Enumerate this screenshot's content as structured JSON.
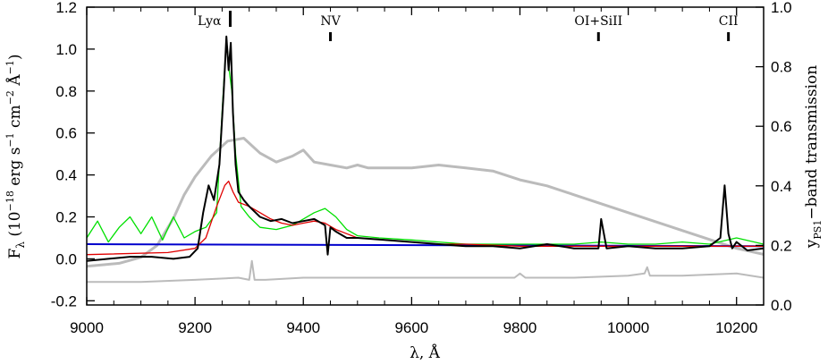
{
  "chart_data": {
    "type": "line",
    "title": "",
    "xlabel": "λ, Å",
    "ylabel_left": "F_λ (10^-18 erg s^-1 cm^-2 Å^-1)",
    "ylabel_right": "y_PS1-band transmission",
    "xlim": [
      9000,
      10250
    ],
    "ylim_left": [
      -0.22,
      1.2
    ],
    "ylim_right": [
      0.0,
      1.0
    ],
    "x_ticks": [
      9000,
      9200,
      9400,
      9600,
      9800,
      10000,
      10200
    ],
    "y_ticks_left": [
      -0.2,
      0.0,
      0.2,
      0.4,
      0.6,
      0.8,
      1.0,
      1.2
    ],
    "y_ticks_right": [
      0.0,
      0.2,
      0.4,
      0.6,
      0.8,
      1.0
    ],
    "line_markers": [
      {
        "label": "Lyα",
        "x": 9265,
        "tall": true
      },
      {
        "label": "NV",
        "x": 9450,
        "tall": false
      },
      {
        "label": "OI+SiII",
        "x": 9945,
        "tall": false
      },
      {
        "label": "CII",
        "x": 10185,
        "tall": false
      }
    ],
    "colors": {
      "observed": "#000000",
      "model_red": "#e00000",
      "template_green": "#00e000",
      "continuum_blue": "#0000cc",
      "filter_gray": "#bbbbbb",
      "noise_gray": "#bbbbbb"
    },
    "series": [
      {
        "key": "filter",
        "axis": "right",
        "x": [
          9000,
          9060,
          9100,
          9130,
          9160,
          9180,
          9200,
          9230,
          9260,
          9290,
          9320,
          9350,
          9380,
          9400,
          9420,
          9450,
          9480,
          9500,
          9520,
          9560,
          9600,
          9650,
          9700,
          9750,
          9800,
          9850,
          9900,
          10000,
          10100,
          10200,
          10250
        ],
        "y": [
          0.13,
          0.14,
          0.16,
          0.2,
          0.29,
          0.37,
          0.43,
          0.5,
          0.55,
          0.56,
          0.51,
          0.48,
          0.5,
          0.52,
          0.48,
          0.47,
          0.46,
          0.47,
          0.46,
          0.46,
          0.46,
          0.47,
          0.46,
          0.45,
          0.42,
          0.4,
          0.37,
          0.31,
          0.25,
          0.19,
          0.17
        ]
      },
      {
        "key": "noise",
        "axis": "left",
        "x": [
          9000,
          9100,
          9200,
          9280,
          9300,
          9305,
          9310,
          9330,
          9400,
          9500,
          9600,
          9700,
          9790,
          9800,
          9810,
          9900,
          10000,
          10030,
          10035,
          10040,
          10100,
          10200,
          10250
        ],
        "y": [
          -0.11,
          -0.11,
          -0.1,
          -0.09,
          -0.1,
          -0.01,
          -0.1,
          -0.1,
          -0.09,
          -0.09,
          -0.09,
          -0.09,
          -0.09,
          -0.07,
          -0.09,
          -0.09,
          -0.08,
          -0.07,
          -0.04,
          -0.08,
          -0.08,
          -0.07,
          -0.09
        ]
      },
      {
        "key": "continuum",
        "axis": "left",
        "x": [
          9000,
          10250
        ],
        "y": [
          0.07,
          0.06
        ]
      },
      {
        "key": "template",
        "axis": "left",
        "x": [
          9000,
          9020,
          9040,
          9060,
          9080,
          9100,
          9120,
          9140,
          9160,
          9180,
          9200,
          9220,
          9240,
          9250,
          9258,
          9263,
          9268,
          9275,
          9285,
          9300,
          9320,
          9350,
          9380,
          9400,
          9420,
          9440,
          9460,
          9480,
          9500,
          9540,
          9600,
          9650,
          9700,
          9750,
          9800,
          9850,
          9900,
          9950,
          10000,
          10050,
          10100,
          10150,
          10200,
          10250
        ],
        "y": [
          0.1,
          0.18,
          0.08,
          0.15,
          0.2,
          0.12,
          0.2,
          0.09,
          0.2,
          0.1,
          0.13,
          0.15,
          0.22,
          0.7,
          1.05,
          0.9,
          0.8,
          0.5,
          0.25,
          0.2,
          0.15,
          0.14,
          0.16,
          0.19,
          0.22,
          0.24,
          0.2,
          0.14,
          0.11,
          0.1,
          0.09,
          0.08,
          0.07,
          0.07,
          0.07,
          0.07,
          0.07,
          0.08,
          0.07,
          0.07,
          0.08,
          0.07,
          0.1,
          0.07
        ]
      },
      {
        "key": "model",
        "axis": "left",
        "x": [
          9000,
          9150,
          9200,
          9220,
          9240,
          9255,
          9262,
          9270,
          9280,
          9300,
          9320,
          9340,
          9360,
          9380,
          9400,
          9420,
          9440,
          9460,
          9480,
          9500,
          9550,
          9600,
          9650,
          9700,
          9800,
          9900,
          10000,
          10100,
          10200,
          10250
        ],
        "y": [
          0.02,
          0.03,
          0.05,
          0.1,
          0.25,
          0.35,
          0.37,
          0.32,
          0.27,
          0.25,
          0.22,
          0.19,
          0.17,
          0.16,
          0.17,
          0.18,
          0.17,
          0.14,
          0.12,
          0.1,
          0.09,
          0.08,
          0.07,
          0.07,
          0.06,
          0.06,
          0.06,
          0.06,
          0.06,
          0.06
        ]
      },
      {
        "key": "observed",
        "axis": "left",
        "x": [
          9000,
          9040,
          9080,
          9120,
          9160,
          9190,
          9205,
          9215,
          9225,
          9235,
          9245,
          9253,
          9258,
          9262,
          9266,
          9270,
          9275,
          9280,
          9290,
          9300,
          9320,
          9340,
          9360,
          9380,
          9400,
          9420,
          9440,
          9445,
          9450,
          9460,
          9480,
          9500,
          9550,
          9600,
          9650,
          9700,
          9750,
          9800,
          9850,
          9900,
          9945,
          9950,
          9960,
          10000,
          10050,
          10100,
          10150,
          10170,
          10178,
          10185,
          10192,
          10200,
          10220,
          10250
        ],
        "y": [
          -0.01,
          0.0,
          0.01,
          0.01,
          0.0,
          0.01,
          0.05,
          0.22,
          0.35,
          0.28,
          0.45,
          0.8,
          1.06,
          0.9,
          1.03,
          0.7,
          0.45,
          0.32,
          0.28,
          0.25,
          0.2,
          0.18,
          0.19,
          0.17,
          0.18,
          0.19,
          0.16,
          0.02,
          0.15,
          0.13,
          0.1,
          0.1,
          0.09,
          0.08,
          0.07,
          0.06,
          0.06,
          0.05,
          0.07,
          0.05,
          0.05,
          0.19,
          0.05,
          0.06,
          0.05,
          0.05,
          0.06,
          0.1,
          0.35,
          0.12,
          0.05,
          0.08,
          0.04,
          0.05
        ]
      }
    ]
  }
}
